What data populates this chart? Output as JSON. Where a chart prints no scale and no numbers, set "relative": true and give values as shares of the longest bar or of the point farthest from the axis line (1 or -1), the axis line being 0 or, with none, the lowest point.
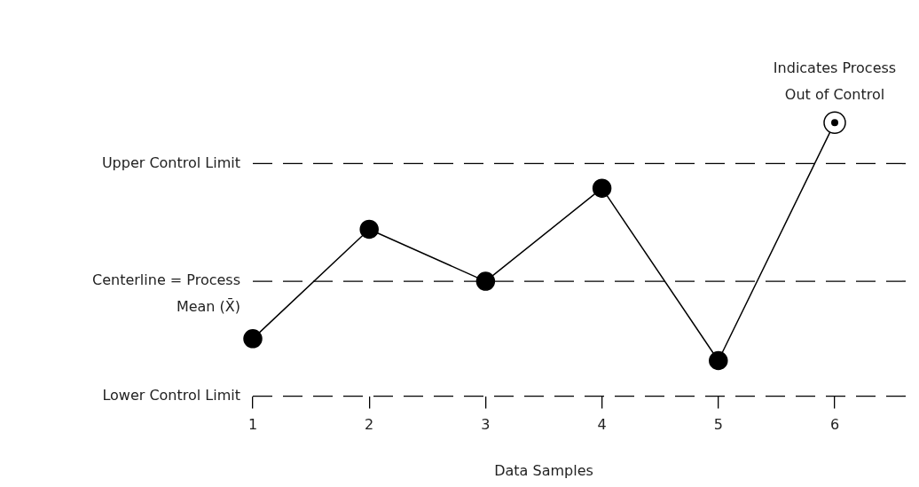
{
  "chart_data": {
    "type": "line",
    "relative": true,
    "xlabel": "Data Samples",
    "categories": [
      "1",
      "2",
      "3",
      "4",
      "5",
      "6"
    ],
    "series": [
      {
        "color": "#000000",
        "values": [
          0.21,
          0.61,
          0.42,
          0.76,
          0.13,
          1.0
        ]
      }
    ],
    "ref_lines": [
      {
        "axis": "y",
        "value": 0.85,
        "label": "Upper Control Limit",
        "line_style": "dashed",
        "color": "#000000"
      },
      {
        "axis": "y",
        "value": 0.42,
        "label": "Centerline = Process\nMean (X̄)",
        "line_style": "dashed",
        "color": "#000000"
      },
      {
        "axis": "y",
        "value": 0,
        "label": "Lower Control Limit",
        "line_style": "dashed",
        "color": "#000000"
      }
    ],
    "annotations": [
      {
        "text": "Indicates Process\nOut of Control",
        "x": "6",
        "y": 1.0
      }
    ],
    "marker": "circle",
    "line_style": "solid",
    "legend": false
  }
}
